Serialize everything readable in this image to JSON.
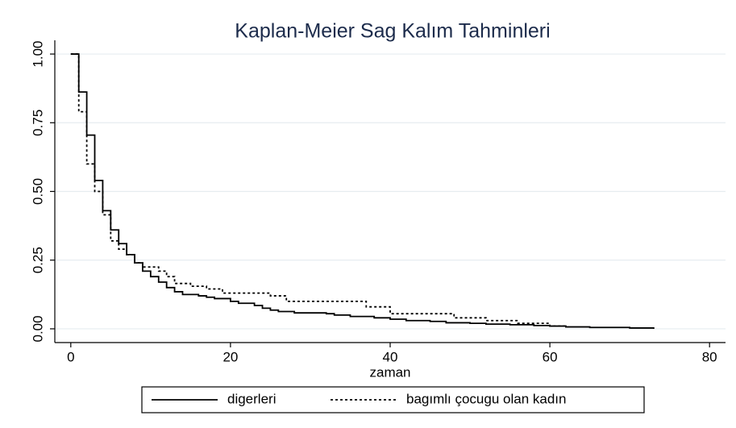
{
  "chart_data": {
    "type": "line",
    "step": "post",
    "title": "Kaplan-Meier Sag Kalım Tahminleri",
    "x_label": "zaman",
    "xlim": [
      -2,
      82
    ],
    "ylim": [
      -0.05,
      1.05
    ],
    "xticks": [
      0,
      20,
      40,
      60,
      80
    ],
    "yticks": [
      {
        "value": 0,
        "label": "0.00"
      },
      {
        "value": 0.25,
        "label": "0.25"
      },
      {
        "value": 0.5,
        "label": "0.50"
      },
      {
        "value": 0.75,
        "label": "0.75"
      },
      {
        "value": 1,
        "label": "1.00"
      }
    ],
    "grid": true,
    "legend": "bottom",
    "series": [
      {
        "name": "digerleri",
        "color": "#000000",
        "dash": "solid",
        "x": [
          0,
          1,
          2,
          3,
          4,
          5,
          6,
          7,
          8,
          9,
          10,
          11,
          12,
          13,
          14,
          16,
          17,
          18,
          20,
          21,
          23,
          24,
          25,
          26,
          28,
          32,
          33,
          35,
          38,
          40,
          42,
          45,
          47,
          50,
          52,
          55,
          58,
          60,
          62,
          65,
          70,
          73
        ],
        "values": [
          1.0,
          0.862,
          0.705,
          0.54,
          0.43,
          0.36,
          0.31,
          0.27,
          0.24,
          0.21,
          0.19,
          0.17,
          0.15,
          0.135,
          0.125,
          0.12,
          0.115,
          0.11,
          0.1,
          0.093,
          0.085,
          0.075,
          0.068,
          0.063,
          0.058,
          0.055,
          0.05,
          0.045,
          0.04,
          0.035,
          0.03,
          0.027,
          0.022,
          0.02,
          0.017,
          0.015,
          0.012,
          0.01,
          0.007,
          0.005,
          0.003,
          0.0
        ]
      },
      {
        "name": "bagımlı çocugu olan kadın",
        "color": "#000000",
        "dash": "dotted",
        "x": [
          0,
          1,
          2,
          3,
          4,
          5,
          6,
          7,
          8,
          9,
          11,
          12,
          13,
          15,
          17,
          19,
          25,
          27,
          37,
          40,
          48,
          52,
          56,
          60,
          62
        ],
        "values": [
          1.0,
          0.79,
          0.6,
          0.5,
          0.415,
          0.32,
          0.29,
          0.27,
          0.24,
          0.225,
          0.21,
          0.19,
          0.165,
          0.155,
          0.145,
          0.13,
          0.12,
          0.1,
          0.08,
          0.055,
          0.04,
          0.03,
          0.02,
          0.01,
          0.005
        ]
      }
    ]
  }
}
